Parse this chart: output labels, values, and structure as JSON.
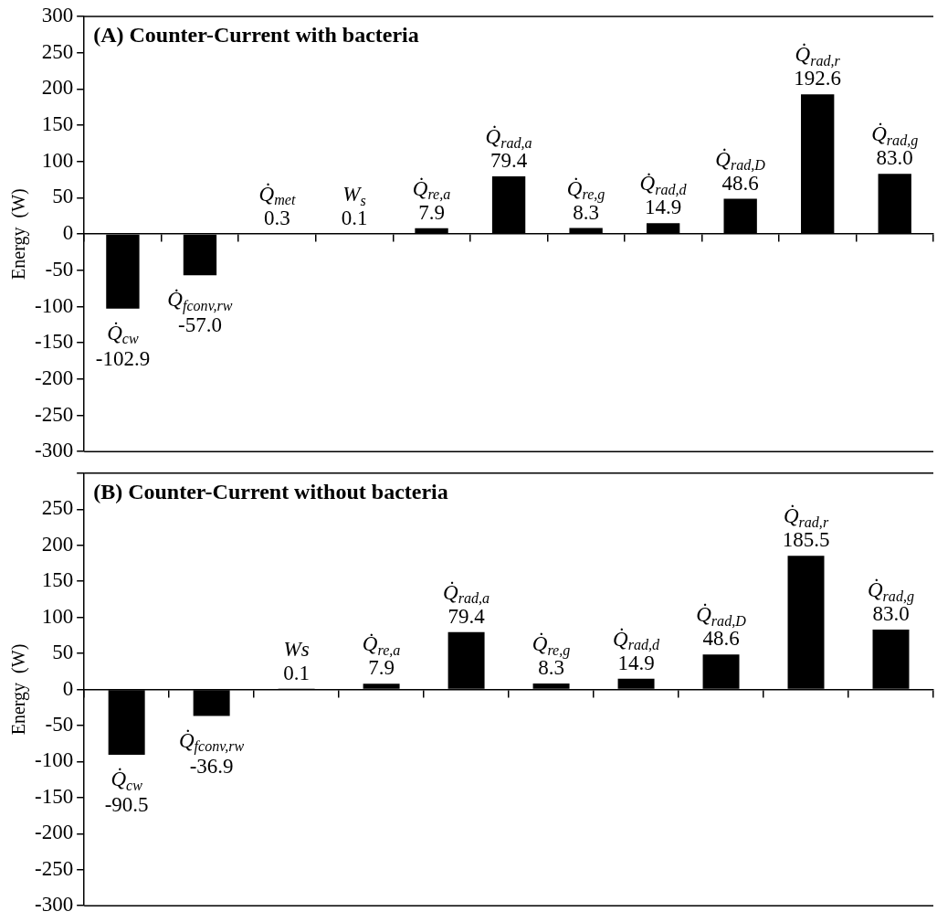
{
  "chart_data": [
    {
      "type": "bar",
      "title": "(A) Counter-Current with bacteria",
      "ylabel": "Energy  (W)",
      "color": "#000000",
      "tick_labels": "y",
      "categories": [
        "Q̇$_{cw}$",
        "Q̇$_{fconv,rw}$",
        "Q̇$_{met}$",
        "W$_{s}$",
        "Q̇$_{re,a}$",
        "Q̇$_{rad,a}$",
        "Q̇$_{re,g}$",
        "Q̇$_{rad,d}$",
        "Q̇$_{rad,D}$",
        "Q̇$_{rad,r}$",
        "Q̇$_{rad,g}$"
      ],
      "values": [
        -102.9,
        -57.0,
        0.3,
        0.1,
        7.9,
        79.4,
        8.3,
        14.9,
        48.6,
        192.6,
        83.0
      ],
      "value_labels": [
        "-102.9",
        "-57.0",
        "0.3",
        "0.1",
        "7.9",
        "79.4",
        "8.3",
        "14.9",
        "48.6",
        "192.6",
        "83.0"
      ],
      "ylim": [
        -300,
        300
      ],
      "yticks": [
        -300,
        -250,
        -200,
        -150,
        -100,
        -50,
        0,
        50,
        100,
        150,
        200,
        250,
        300
      ]
    },
    {
      "type": "bar",
      "title": "(B) Counter-Current without bacteria",
      "ylabel": "Energy  (W)",
      "color": "#000000",
      "tick_labels": "y",
      "categories": [
        "Q̇$_{cw}$",
        "Q̇$_{fconv,rw}$",
        "Ws",
        "Q̇$_{re,a}$",
        "Q̇$_{rad,a}$",
        "Q̇$_{re,g}$",
        "Q̇$_{rad,d}$",
        "Q̇$_{rad,D}$",
        "Q̇$_{rad,r}$",
        "Q̇$_{rad,g}$"
      ],
      "values": [
        -90.5,
        -36.9,
        0.1,
        7.9,
        79.4,
        8.3,
        14.9,
        48.6,
        185.5,
        83.0
      ],
      "value_labels": [
        "-90.5",
        "-36.9",
        "0.1",
        "7.9",
        "79.4",
        "8.3",
        "14.9",
        "48.6",
        "185.5",
        "83.0"
      ],
      "ylim": [
        -300,
        300
      ],
      "yticks": [
        -300,
        -250,
        -200,
        -150,
        -100,
        -50,
        0,
        50,
        100,
        150,
        200,
        250,
        {
          "value": 300,
          "label": null
        }
      ]
    }
  ]
}
